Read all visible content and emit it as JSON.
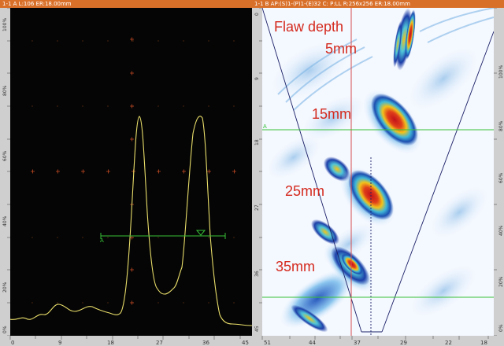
{
  "ascan": {
    "title": "1-1 A L:106 ER:18.00mm",
    "gate_label": "A",
    "hruler_ticks": [
      "0",
      "9",
      "18",
      "27",
      "36",
      "45"
    ],
    "vruler_ticks": [
      "100%",
      "80%",
      "60%",
      "40%",
      "20%",
      "0%"
    ],
    "trace_color": "#e9de6a",
    "gate_color": "#37c137"
  },
  "sscan": {
    "title": "1-1 B AP:(S)1-(P)1-(E)32 C: P:LL R:256x256 ER:18.00mm",
    "gate_label": "A",
    "hruler_ticks": [
      "51",
      "44",
      "37",
      "29",
      "22",
      "18"
    ],
    "vruler_ticks_left": [
      "0",
      "9",
      "18",
      "27",
      "36",
      "45"
    ],
    "vruler_ticks_right": [
      "100%",
      "80%",
      "60%",
      "40%",
      "20%",
      "0%"
    ],
    "flaw_depth_title": "Flaw depth",
    "flaw_labels": [
      "5mm",
      "15mm",
      "25mm",
      "35mm"
    ],
    "label_color": "#d42a1e"
  }
}
